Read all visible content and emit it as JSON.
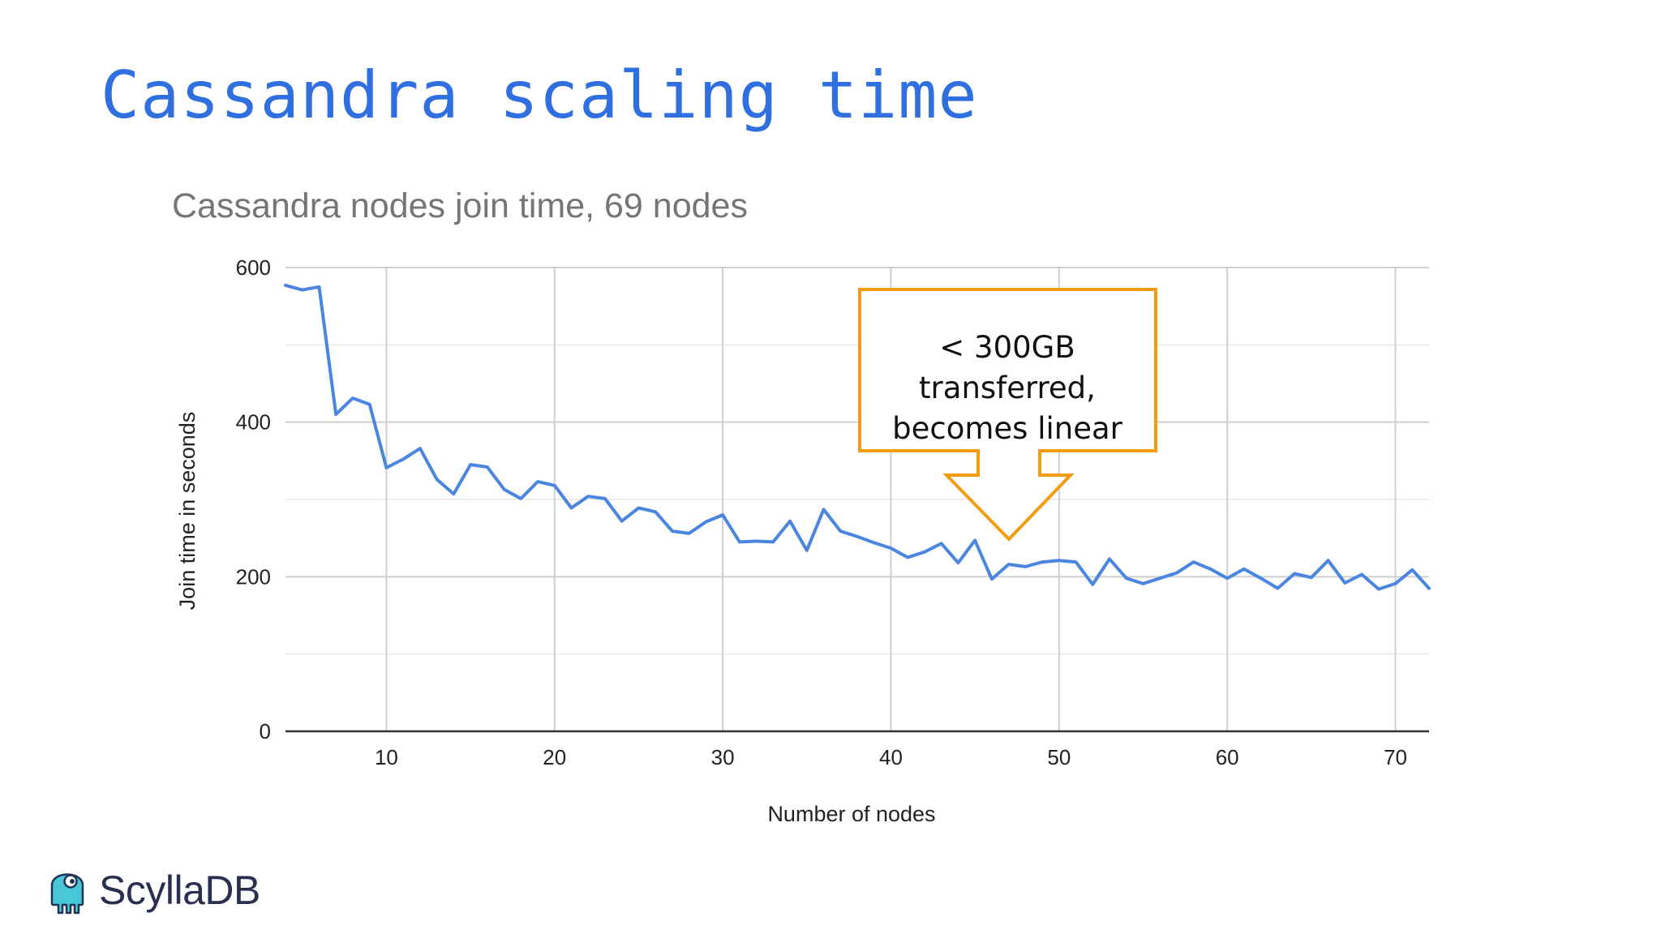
{
  "slide": {
    "title": "Cassandra scaling time"
  },
  "brand": {
    "name": "ScyllaDB",
    "icon": "scylla-octopus-logo"
  },
  "annotation": {
    "line1": "< 300GB transferred,",
    "line2": "becomes linear",
    "color": "#f39c12"
  },
  "chart_data": {
    "type": "line",
    "title": "Cassandra nodes join time, 69 nodes",
    "xlabel": "Number of nodes",
    "ylabel": "Join time in seconds",
    "xlim": [
      4,
      72
    ],
    "ylim": [
      0,
      600
    ],
    "xticks": [
      10,
      20,
      30,
      40,
      50,
      60,
      70
    ],
    "yticks": [
      0,
      200,
      400,
      600
    ],
    "grid": true,
    "line_color": "#4a86e0",
    "series": [
      {
        "x": [
          4,
          5,
          6,
          7,
          8,
          9,
          10,
          11,
          12,
          13,
          14,
          15,
          16,
          17,
          18,
          19,
          20,
          21,
          22,
          23,
          24,
          25,
          26,
          27,
          28,
          29,
          30,
          31,
          32,
          33,
          34,
          35,
          36,
          37,
          38,
          39,
          40,
          41,
          42,
          43,
          44,
          45,
          46,
          47,
          48,
          49,
          50,
          51,
          52,
          53,
          54,
          55,
          56,
          57,
          58,
          59,
          60,
          61,
          62,
          63,
          64,
          65,
          66,
          67,
          68,
          69,
          70,
          71,
          72
        ],
        "values": [
          577,
          571,
          575,
          410,
          431,
          423,
          341,
          352,
          366,
          326,
          307,
          345,
          342,
          313,
          301,
          323,
          318,
          289,
          304,
          301,
          272,
          289,
          284,
          259,
          256,
          271,
          280,
          245,
          246,
          245,
          272,
          234,
          287,
          259,
          252,
          244,
          237,
          225,
          232,
          243,
          218,
          247,
          197,
          216,
          213,
          219,
          221,
          219,
          190,
          223,
          198,
          191,
          198,
          205,
          219,
          210,
          198,
          210,
          198,
          185,
          204,
          199,
          221,
          192,
          203,
          184,
          191,
          209,
          185
        ]
      }
    ]
  }
}
